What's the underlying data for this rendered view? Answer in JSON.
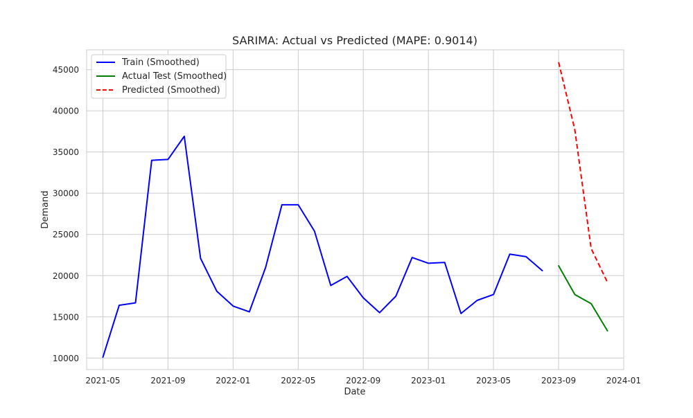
{
  "chart_data": {
    "type": "line",
    "title": "SARIMA: Actual vs Predicted (MAPE: 0.9014)",
    "xlabel": "Date",
    "ylabel": "Demand",
    "x_ticks": [
      "2021-05",
      "2021-09",
      "2022-01",
      "2022-05",
      "2022-09",
      "2023-01",
      "2023-05",
      "2023-09",
      "2024-01"
    ],
    "y_ticks": [
      10000,
      15000,
      20000,
      25000,
      30000,
      35000,
      40000,
      45000
    ],
    "xlim": [
      "2021-04",
      "2024-01"
    ],
    "ylim": [
      8600,
      47400
    ],
    "grid": true,
    "legend_position": "top-left",
    "series": [
      {
        "name": "Train (Smoothed)",
        "color": "#0000ff",
        "style": "solid",
        "x": [
          "2021-05",
          "2021-06",
          "2021-07",
          "2021-08",
          "2021-09",
          "2021-10",
          "2021-11",
          "2021-12",
          "2022-01",
          "2022-02",
          "2022-03",
          "2022-04",
          "2022-05",
          "2022-06",
          "2022-07",
          "2022-08",
          "2022-09",
          "2022-10",
          "2022-11",
          "2022-12",
          "2023-01",
          "2023-02",
          "2023-03",
          "2023-04",
          "2023-05",
          "2023-06",
          "2023-07",
          "2023-08"
        ],
        "values": [
          10100,
          16400,
          16700,
          34000,
          34100,
          36900,
          22100,
          18100,
          16300,
          15600,
          21000,
          28600,
          28600,
          25400,
          18800,
          19900,
          17300,
          15500,
          17500,
          22200,
          21500,
          21600,
          15400,
          17000,
          17700,
          22600,
          22300,
          20600
        ]
      },
      {
        "name": "Actual Test (Smoothed)",
        "color": "#008000",
        "style": "solid",
        "x": [
          "2023-09",
          "2023-10",
          "2023-11",
          "2023-12"
        ],
        "values": [
          21200,
          17700,
          16600,
          13300
        ]
      },
      {
        "name": "Predicted (Smoothed)",
        "color": "#ff0000",
        "style": "dashed",
        "x": [
          "2023-09",
          "2023-10",
          "2023-11",
          "2023-12"
        ],
        "values": [
          45900,
          37700,
          23300,
          19200
        ]
      }
    ]
  }
}
